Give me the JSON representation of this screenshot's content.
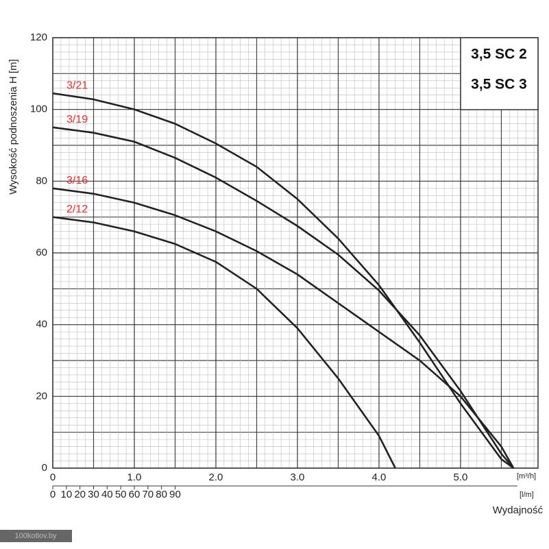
{
  "chart_data": {
    "type": "line",
    "title_lines": [
      "3,5 SC 2",
      "3,5 SC 3"
    ],
    "y_label": "Wysokość podnoszenia H [m]",
    "x_label": "Wydajność",
    "x_unit": "[m³/h]",
    "x2_unit": "[l/m]",
    "watermark": "100kotlov.by",
    "xlim": [
      0,
      5.95
    ],
    "xticks": [
      0,
      {
        "value": 1,
        "label": "1.0"
      },
      {
        "value": 2,
        "label": "2.0"
      },
      {
        "value": 3,
        "label": "3.0"
      },
      {
        "value": 4,
        "label": "4.0"
      },
      {
        "value": 5,
        "label": "5.0"
      }
    ],
    "x2lim": [
      0,
      357
    ],
    "x2ticks": [
      0,
      10,
      20,
      30,
      40,
      50,
      60,
      70,
      80,
      90
    ],
    "ylim": [
      0,
      120
    ],
    "yticks": [
      0,
      20,
      40,
      60,
      80,
      100,
      120
    ],
    "grid": true,
    "series": [
      {
        "name": "3/21",
        "color": "#222222",
        "label_color": "#e03030",
        "x": [
          0,
          0.5,
          1.0,
          1.5,
          2.0,
          2.5,
          3.0,
          3.5,
          4.0,
          4.5,
          5.0,
          5.5,
          5.65
        ],
        "values": [
          104.5,
          102.8,
          100,
          96,
          90.5,
          84,
          75,
          64,
          51,
          35,
          18,
          2.5,
          0
        ]
      },
      {
        "name": "3/19",
        "color": "#222222",
        "label_color": "#e03030",
        "x": [
          0,
          0.5,
          1.0,
          1.5,
          2.0,
          2.5,
          3.0,
          3.5,
          4.0,
          4.5,
          5.0,
          5.5,
          5.65
        ],
        "values": [
          95,
          93.5,
          91,
          86.5,
          81,
          74.5,
          67.5,
          59.5,
          49.5,
          37,
          21.5,
          4,
          0
        ]
      },
      {
        "name": "3/16",
        "color": "#222222",
        "label_color": "#e03030",
        "x": [
          0,
          0.5,
          1.0,
          1.5,
          2.0,
          2.5,
          3.0,
          3.5,
          4.0,
          4.5,
          5.0,
          5.5,
          5.65
        ],
        "values": [
          78,
          76.5,
          74,
          70.5,
          66,
          60.5,
          54,
          46,
          38,
          30,
          20,
          6,
          0
        ]
      },
      {
        "name": "2/12",
        "color": "#222222",
        "label_color": "#e03030",
        "x": [
          0,
          0.5,
          1.0,
          1.5,
          2.0,
          2.5,
          3.0,
          3.5,
          4.0,
          4.2
        ],
        "values": [
          70,
          68.5,
          66,
          62.5,
          57.5,
          50,
          39,
          25,
          9,
          0
        ]
      }
    ]
  }
}
